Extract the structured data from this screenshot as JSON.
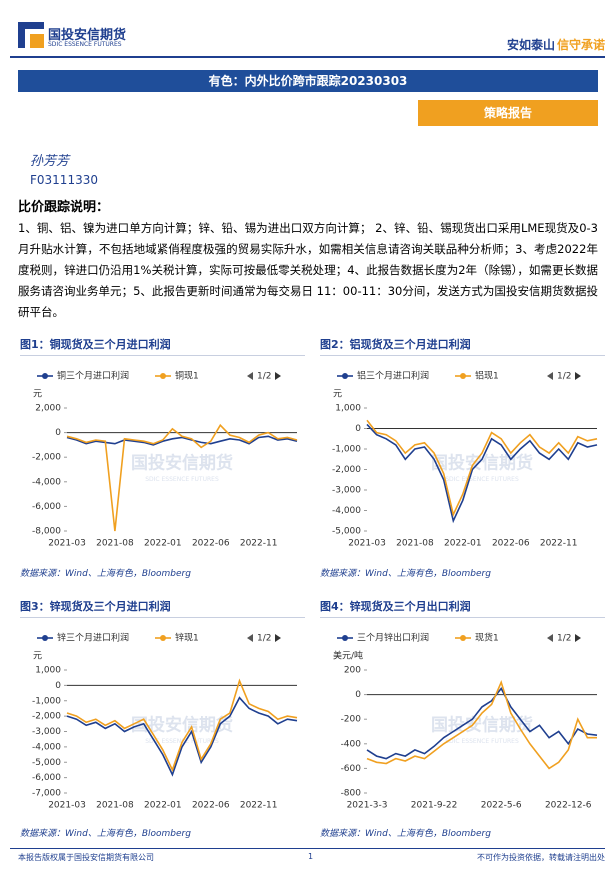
{
  "header": {
    "logo_cn": "国投安信期货",
    "logo_en": "SDIC ESSENCE FUTURES",
    "slogan_1": "安如泰山",
    "slogan_2": "信守承诺"
  },
  "title": "有色：内外比价跨市跟踪20230303",
  "tag": "策略报告",
  "author": "孙芳芳",
  "author_id": "F03111330",
  "section_title": "比价跟踪说明：",
  "notes": "1、铜、铝、镍为进口单方向计算；锌、铅、锡为进出口双方向计算； 2、锌、铅、锡现货出口采用LME现货及0-3月升贴水计算，不包括地域紧俏程度极强的贸易实际升水，如需相关信息请咨询关联品种分析师；3、考虑2022年度税则，锌进口仍沿用1%关税计算，实际可按最低零关税处理；4、此报告数据长度为2年（除锡），如需更长数据服务请咨询业务单元；5、此报告更新时间通常为每交易日 11：00-11：30分间，发送方式为国投安信期货数据投研平台。",
  "watermark": {
    "cn": "国投安信期货",
    "en": "SDIC ESSENCE FUTURES"
  },
  "chart_data": [
    {
      "type": "line",
      "title": "图1：铜现货及三个月进口利润",
      "source": "数据来源：Wind、上海有色，Bloomberg",
      "y_unit": "元",
      "legend_page": "1/2",
      "categories": [
        "2021-03",
        null,
        null,
        null,
        null,
        "2021-08",
        null,
        null,
        null,
        null,
        "2022-01",
        null,
        null,
        null,
        null,
        "2022-06",
        null,
        null,
        null,
        null,
        "2022-11",
        null,
        null,
        null,
        null
      ],
      "series": [
        {
          "name": "铜三个月进口利润",
          "color": "#1f3f8f",
          "values": [
            -400,
            -600,
            -900,
            -700,
            -800,
            -900,
            -600,
            -700,
            -800,
            -1000,
            -700,
            -500,
            -400,
            -600,
            -800,
            -900,
            -700,
            -500,
            -600,
            -900,
            -400,
            -300,
            -600,
            -500,
            -700
          ]
        },
        {
          "name": "铜现1",
          "color": "#f0a020",
          "values": [
            -300,
            -500,
            -800,
            -600,
            -700,
            -8000,
            -500,
            -600,
            -700,
            -900,
            -600,
            300,
            -300,
            -500,
            -1200,
            -700,
            600,
            -200,
            -400,
            -800,
            -200,
            0,
            -500,
            -400,
            -600
          ]
        }
      ],
      "ylim": [
        -8000,
        2000
      ],
      "yticks": [
        {
          "value": 2000,
          "label": "2,000"
        },
        0,
        {
          "value": -2000,
          "label": "-2,000"
        },
        {
          "value": -4000,
          "label": "-4,000"
        },
        {
          "value": -6000,
          "label": "-6,000"
        },
        {
          "value": -8000,
          "label": "-8,000"
        }
      ]
    },
    {
      "type": "line",
      "title": "图2：铝现货及三个月进口利润",
      "source": "数据来源：Wind、上海有色，Bloomberg",
      "y_unit": "元",
      "legend_page": "1/2",
      "categories": [
        "2021-03",
        null,
        null,
        null,
        null,
        "2021-08",
        null,
        null,
        null,
        null,
        "2022-01",
        null,
        null,
        null,
        null,
        "2022-06",
        null,
        null,
        null,
        null,
        "2022-11",
        null,
        null,
        null,
        null
      ],
      "series": [
        {
          "name": "铝三个月进口利润",
          "color": "#1f3f8f",
          "values": [
            200,
            -300,
            -500,
            -800,
            -1500,
            -1000,
            -900,
            -1500,
            -2500,
            -4500,
            -3500,
            -2000,
            -1500,
            -500,
            -800,
            -1500,
            -1000,
            -600,
            -1200,
            -1500,
            -1000,
            -1500,
            -700,
            -900,
            -800
          ]
        },
        {
          "name": "铝现1",
          "color": "#f0a020",
          "values": [
            400,
            -200,
            -300,
            -600,
            -1200,
            -800,
            -700,
            -1200,
            -2200,
            -4200,
            -3200,
            -1800,
            -1200,
            -200,
            -500,
            -1200,
            -700,
            -300,
            -900,
            -1200,
            -700,
            -1200,
            -400,
            -600,
            -500
          ]
        }
      ],
      "ylim": [
        -5000,
        1000
      ],
      "yticks": [
        {
          "value": 1000,
          "label": "1,000"
        },
        0,
        {
          "value": -1000,
          "label": "-1,000"
        },
        {
          "value": -2000,
          "label": "-2,000"
        },
        {
          "value": -3000,
          "label": "-3,000"
        },
        {
          "value": -4000,
          "label": "-4,000"
        },
        {
          "value": -5000,
          "label": "-5,000"
        }
      ]
    },
    {
      "type": "line",
      "title": "图3：锌现货及三个月进口利润",
      "source": "数据来源：Wind、上海有色，Bloomberg",
      "y_unit": "元",
      "legend_page": "1/2",
      "categories": [
        "2021-03",
        null,
        null,
        null,
        null,
        "2021-08",
        null,
        null,
        null,
        null,
        "2022-01",
        null,
        null,
        null,
        null,
        "2022-06",
        null,
        null,
        null,
        null,
        "2022-11",
        null,
        null,
        null,
        null
      ],
      "series": [
        {
          "name": "锌三个月进口利润",
          "color": "#1f3f8f",
          "values": [
            -2000,
            -2200,
            -2600,
            -2400,
            -2800,
            -2500,
            -3000,
            -2700,
            -2500,
            -3500,
            -4500,
            -5800,
            -4000,
            -3000,
            -5000,
            -4000,
            -2500,
            -2000,
            -800,
            -1500,
            -1800,
            -2000,
            -2500,
            -2200,
            -2300
          ]
        },
        {
          "name": "锌现1",
          "color": "#f0a020",
          "values": [
            -1800,
            -2000,
            -2400,
            -2200,
            -2600,
            -2300,
            -2800,
            -2500,
            -2200,
            -3200,
            -4200,
            -5500,
            -3700,
            -2700,
            -4800,
            -3800,
            -2200,
            -1800,
            300,
            -1200,
            -1500,
            -1700,
            -2200,
            -2000,
            -2100
          ]
        }
      ],
      "ylim": [
        -7000,
        1000
      ],
      "yticks": [
        {
          "value": 1000,
          "label": "1,000"
        },
        0,
        {
          "value": -1000,
          "label": "-1,000"
        },
        {
          "value": -2000,
          "label": "-2,000"
        },
        {
          "value": -3000,
          "label": "-3,000"
        },
        {
          "value": -4000,
          "label": "-4,000"
        },
        {
          "value": -5000,
          "label": "-5,000"
        },
        {
          "value": -6000,
          "label": "-6,000"
        },
        {
          "value": -7000,
          "label": "-7,000"
        }
      ]
    },
    {
      "type": "line",
      "title": "图4：锌现货及三个月出口利润",
      "source": "数据来源：Wind、上海有色，Bloomberg",
      "y_unit": "美元/吨",
      "legend_page": "1/2",
      "categories": [
        "2021-3-3",
        null,
        null,
        null,
        null,
        null,
        null,
        "2021-9-22",
        null,
        null,
        null,
        null,
        null,
        null,
        "2022-5-6",
        null,
        null,
        null,
        null,
        null,
        null,
        "2022-12-6",
        null,
        null,
        null
      ],
      "series": [
        {
          "name": "三个月锌出口利润",
          "color": "#1f3f8f",
          "values": [
            -450,
            -500,
            -520,
            -480,
            -500,
            -450,
            -480,
            -420,
            -350,
            -300,
            -250,
            -200,
            -100,
            -50,
            50,
            -100,
            -200,
            -300,
            -250,
            -350,
            -300,
            -400,
            -280,
            -320,
            -330
          ]
        },
        {
          "name": "现货1",
          "color": "#f0a020",
          "values": [
            -520,
            -550,
            -560,
            -520,
            -540,
            -500,
            -520,
            -460,
            -400,
            -350,
            -300,
            -250,
            -150,
            -80,
            100,
            -150,
            -280,
            -400,
            -500,
            -600,
            -550,
            -450,
            -200,
            -350,
            -350
          ]
        }
      ],
      "ylim": [
        -800,
        200
      ],
      "yticks": [
        200,
        0,
        -200,
        -400,
        -600,
        -800
      ]
    }
  ],
  "footer": {
    "left": "本报告版权属于国投安信期货有限公司",
    "page": "1",
    "right": "不可作为投资依据，转载请注明出处"
  }
}
